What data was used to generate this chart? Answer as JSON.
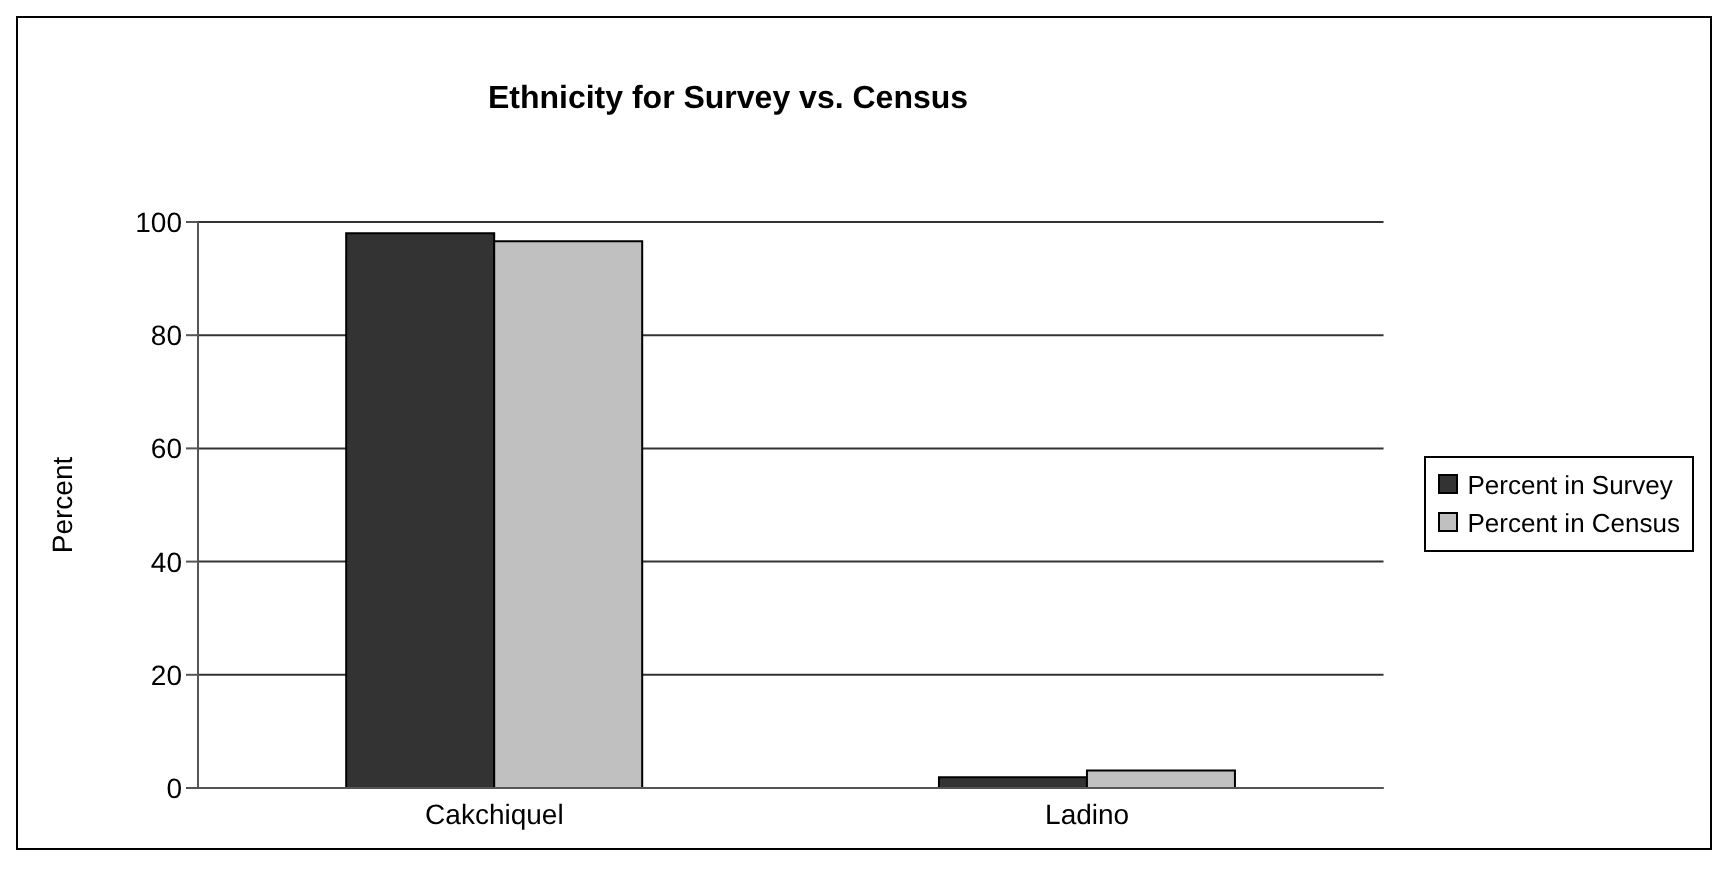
{
  "chart_data": {
    "type": "bar",
    "title": "Ethnicity for Survey vs. Census",
    "ylabel": "Percent",
    "categories": [
      "Cakchiquel",
      "Ladino"
    ],
    "series": [
      {
        "name": "Percent in Survey",
        "color": "#333333",
        "values": [
          98,
          1.9
        ]
      },
      {
        "name": "Percent in Census",
        "color": "#c0c0c0",
        "values": [
          96.6,
          3.1
        ]
      }
    ],
    "ylim": [
      0,
      100
    ],
    "yticks": [
      0,
      20,
      40,
      60,
      80,
      100
    ],
    "grid": "y",
    "legend": "right"
  }
}
